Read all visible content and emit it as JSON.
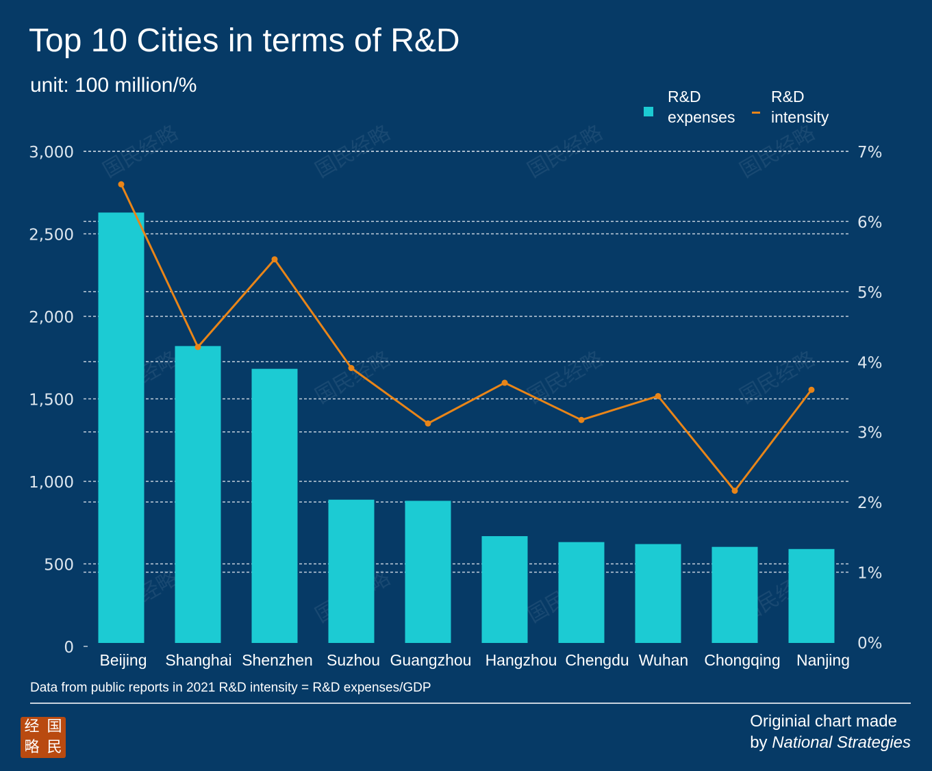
{
  "header": {
    "title": "Top 10 Cities in terms of R&D",
    "subtitle": "unit: 100 million/%"
  },
  "legend": {
    "bars_label": "R&D expenses",
    "line_label": "R&D intensity"
  },
  "footnote": "Data from public reports in 2021  R&D intensity = R&D expenses/GDP",
  "credit": {
    "line1": "Originial chart made",
    "line2_prefix": "by ",
    "line2_em": "National Strategies"
  },
  "logo": {
    "chars": [
      "经",
      "国",
      "略",
      "民"
    ]
  },
  "watermark": "国民经略",
  "colors": {
    "background": "#063a66",
    "bar": "#1ccbd3",
    "line": "#e98518",
    "grid": "#c4d0dc"
  },
  "chart_data": {
    "type": "bar",
    "title": "Top 10 Cities in terms of R&D",
    "subtitle": "unit: 100 million/%",
    "categories": [
      "Beijing",
      "Shanghai",
      "Shenzhen",
      "Suzhou",
      "Guangzhou",
      "Hangzhou",
      "Chengdu",
      "Wuhan",
      "Chongqing",
      "Nanjing"
    ],
    "series": [
      {
        "name": "R&D expenses",
        "type": "bar",
        "axis": "left",
        "values": [
          2629,
          1820,
          1682,
          889,
          882,
          668,
          632,
          620,
          603,
          590
        ]
      },
      {
        "name": "R&D intensity",
        "type": "line",
        "axis": "right",
        "values": [
          6.53,
          4.21,
          5.46,
          3.91,
          3.12,
          3.7,
          3.17,
          3.51,
          2.16,
          3.6
        ]
      }
    ],
    "y_left": {
      "min": 0,
      "max": 3000,
      "ticks": [
        0,
        500,
        1000,
        1500,
        2000,
        2500,
        3000
      ],
      "tick_labels": [
        "0",
        "500",
        "1,000",
        "1,500",
        "2,000",
        "2,500",
        "3,000"
      ]
    },
    "y_right": {
      "min": 0,
      "max": 7,
      "ticks": [
        0,
        1,
        2,
        3,
        4,
        5,
        6,
        7
      ],
      "tick_labels": [
        "0%",
        "1%",
        "2%",
        "3%",
        "4%",
        "5%",
        "6%",
        "7%"
      ]
    },
    "grid": true,
    "legend_position": "top-right"
  }
}
